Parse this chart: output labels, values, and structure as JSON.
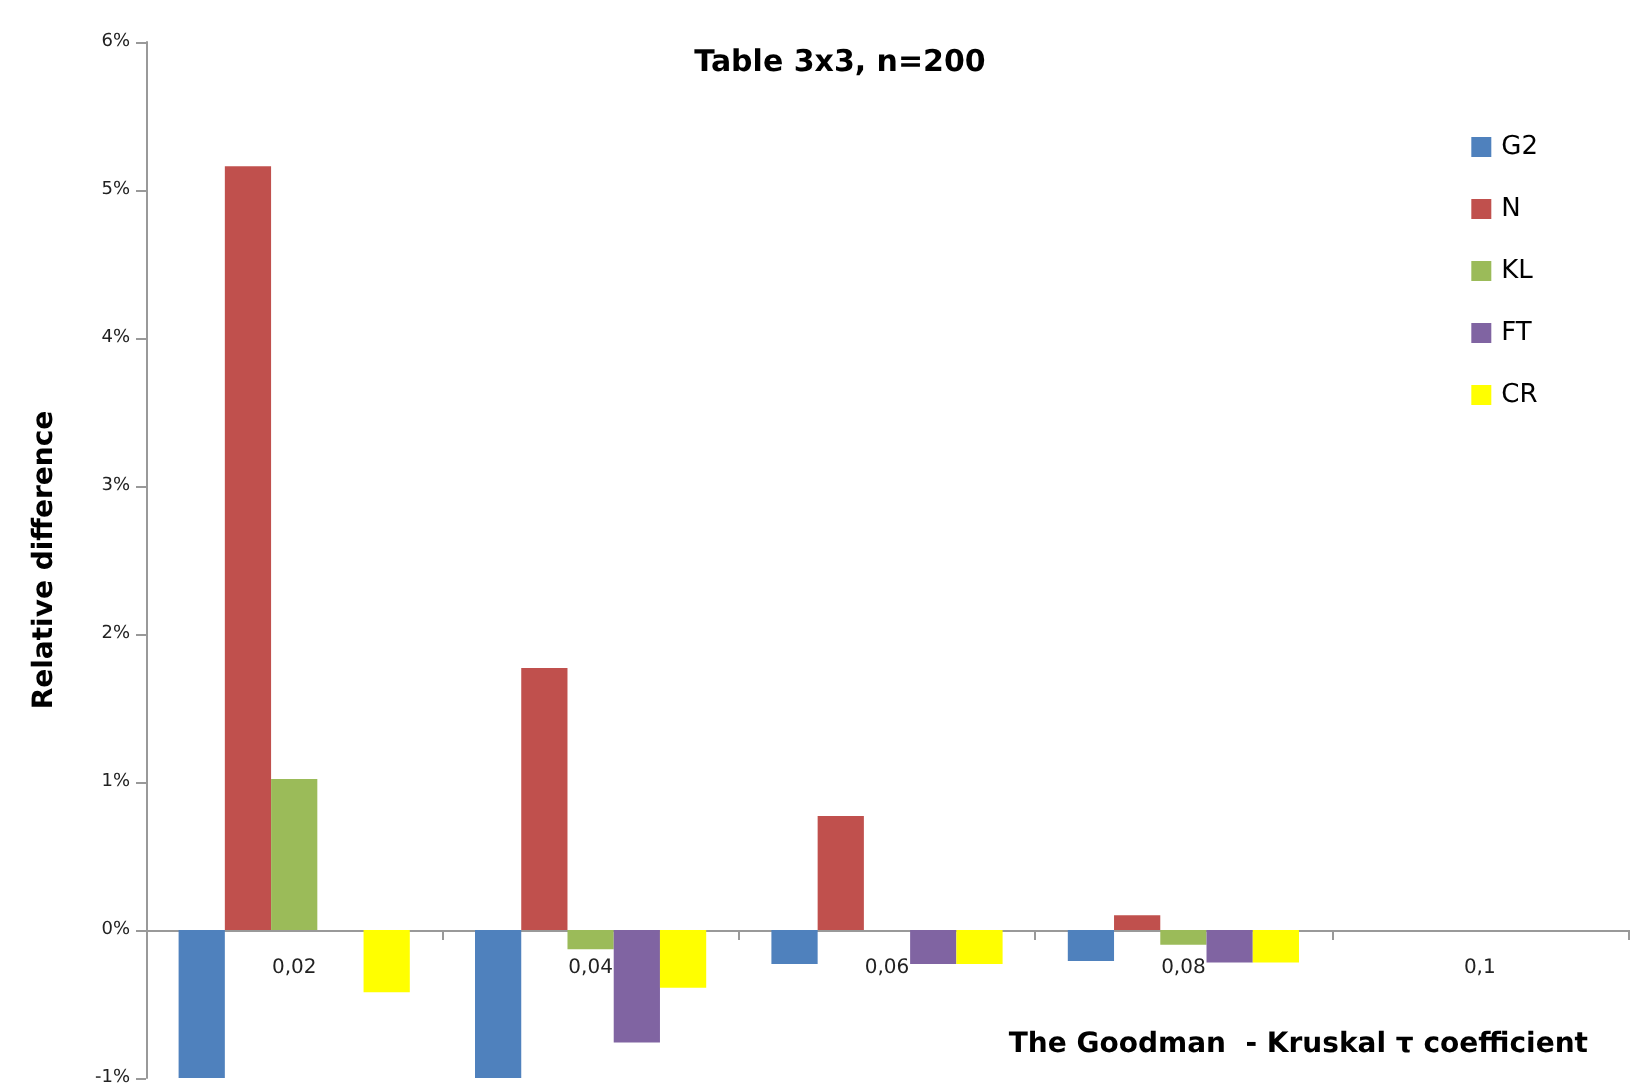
{
  "chart_data": {
    "type": "bar",
    "title": "Table 3x3, n=200",
    "xlabel": "The Goodman  - Kruskal τ coefficient",
    "ylabel": "Relative difference",
    "categories": [
      "0,02",
      "0,04",
      "0,06",
      "0,08",
      "0,1"
    ],
    "series": [
      {
        "name": "G2",
        "color": "#4f81bd",
        "values": [
          -1.0,
          -1.0,
          -0.23,
          -0.21,
          null
        ]
      },
      {
        "name": "N",
        "color": "#c0504d",
        "values": [
          5.16,
          1.77,
          0.77,
          0.1,
          null
        ]
      },
      {
        "name": "KL",
        "color": "#9bbb59",
        "values": [
          1.02,
          -0.13,
          0,
          -0.1,
          null
        ]
      },
      {
        "name": "FT",
        "color": "#8064a2",
        "values": [
          0,
          -0.76,
          -0.23,
          -0.22,
          null
        ]
      },
      {
        "name": "CR",
        "color": "#ffff00",
        "values": [
          -0.42,
          -0.39,
          -0.23,
          -0.22,
          null
        ]
      }
    ],
    "ylim": [
      -1,
      6
    ],
    "yticks": [
      {
        "value": -1,
        "label": "-1%"
      },
      {
        "value": 0,
        "label": "0%"
      },
      {
        "value": 1,
        "label": "1%"
      },
      {
        "value": 2,
        "label": "2%"
      },
      {
        "value": 3,
        "label": "3%"
      },
      {
        "value": 4,
        "label": "4%"
      },
      {
        "value": 5,
        "label": "5%"
      },
      {
        "value": 6,
        "label": "6%"
      }
    ],
    "legend": "top right"
  }
}
